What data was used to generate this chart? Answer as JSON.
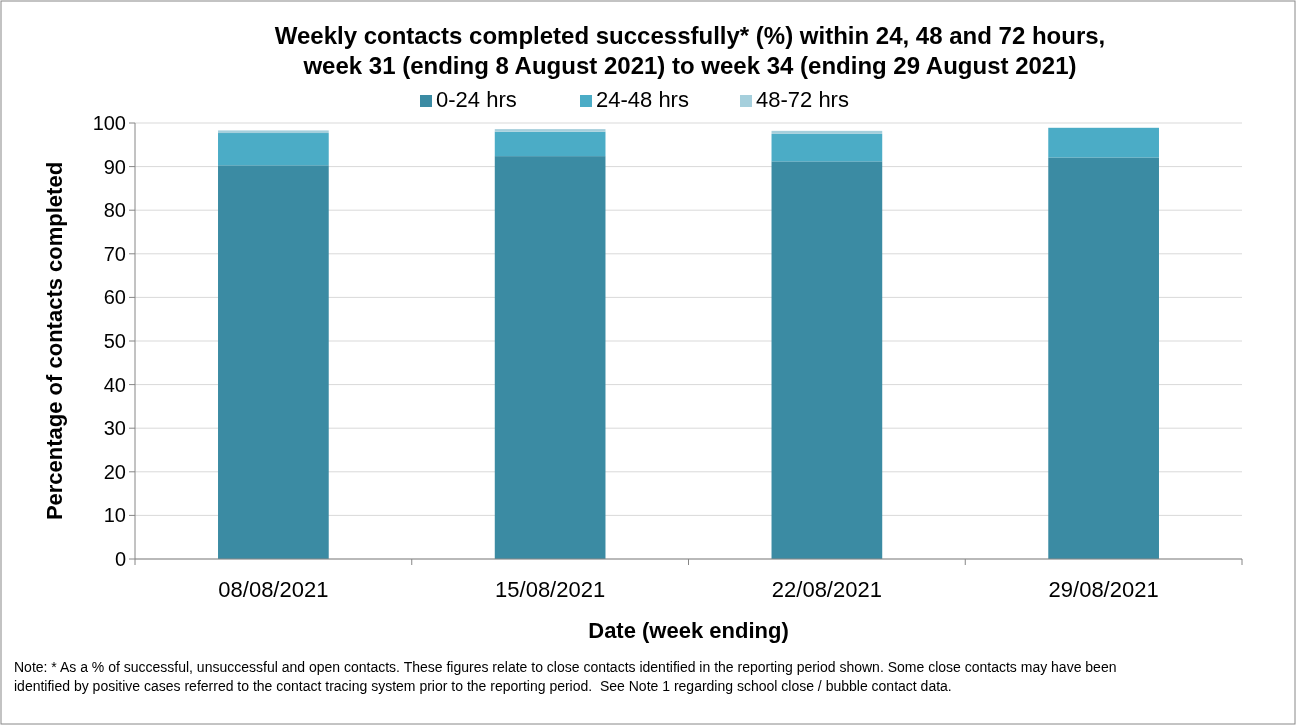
{
  "chart_data": {
    "type": "bar",
    "stacked": true,
    "title": "Weekly contacts completed successfully* (%) within 24, 48 and 72 hours,\nweek 31 (ending 8 August 2021) to week 34 (ending 29 August 2021)",
    "xlabel": "Date (week ending)",
    "ylabel": "Percentage of contacts completed",
    "categories": [
      "08/08/2021",
      "15/08/2021",
      "22/08/2021",
      "29/08/2021"
    ],
    "series": [
      {
        "name": "0-24 hrs",
        "color": "#3b8ba3",
        "values": [
          90.3,
          92.4,
          91.2,
          92.1
        ]
      },
      {
        "name": "24-48 hrs",
        "color": "#4bacc6",
        "values": [
          7.4,
          5.6,
          6.3,
          6.8
        ]
      },
      {
        "name": "48-72 hrs",
        "color": "#a5cfdc",
        "values": [
          0.6,
          0.6,
          0.7,
          0
        ]
      }
    ],
    "ylim": [
      0,
      100
    ],
    "yticks": [
      0,
      10,
      20,
      30,
      40,
      50,
      60,
      70,
      80,
      90,
      100
    ],
    "grid": "y",
    "legend": "top",
    "annotations": [
      "Note: * As a % of successful, unsuccessful and open contacts. These figures relate to close contacts identified in the reporting period shown. Some close contacts may have been identified by positive cases referred to the contact tracing system prior to the reporting period.  See Note 1 regarding school close / bubble contact data."
    ]
  }
}
